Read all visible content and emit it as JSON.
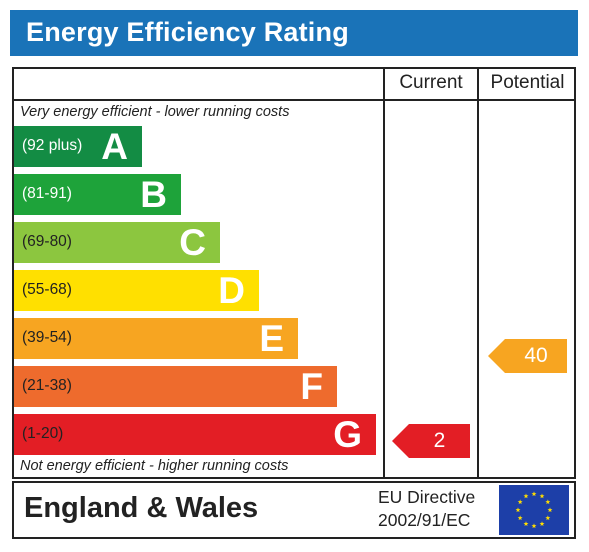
{
  "title": "Energy Efficiency Rating",
  "columns": {
    "current": "Current",
    "potential": "Potential"
  },
  "top_note": "Very energy efficient - lower running costs",
  "bottom_note": "Not energy efficient - higher running costs",
  "footer": {
    "country": "England & Wales",
    "directive_line1": "EU Directive",
    "directive_line2": "2002/91/EC",
    "flag_icon": "eu-flag-icon"
  },
  "chart_data": {
    "type": "bar",
    "bands": [
      {
        "letter": "A",
        "range": "(92 plus)",
        "color": "#138c44"
      },
      {
        "letter": "B",
        "range": "(81-91)",
        "color": "#1ea33a"
      },
      {
        "letter": "C",
        "range": "(69-80)",
        "color": "#8cc63f"
      },
      {
        "letter": "D",
        "range": "(55-68)",
        "color": "#ffe000"
      },
      {
        "letter": "E",
        "range": "(39-54)",
        "color": "#f7a521"
      },
      {
        "letter": "F",
        "range": "(21-38)",
        "color": "#ee6b2d"
      },
      {
        "letter": "G",
        "range": "(1-20)",
        "color": "#e31e25"
      }
    ],
    "current": {
      "value": 2,
      "band": "G",
      "color": "#e31e25"
    },
    "potential": {
      "value": 40,
      "band": "E",
      "color": "#f7a521"
    }
  }
}
